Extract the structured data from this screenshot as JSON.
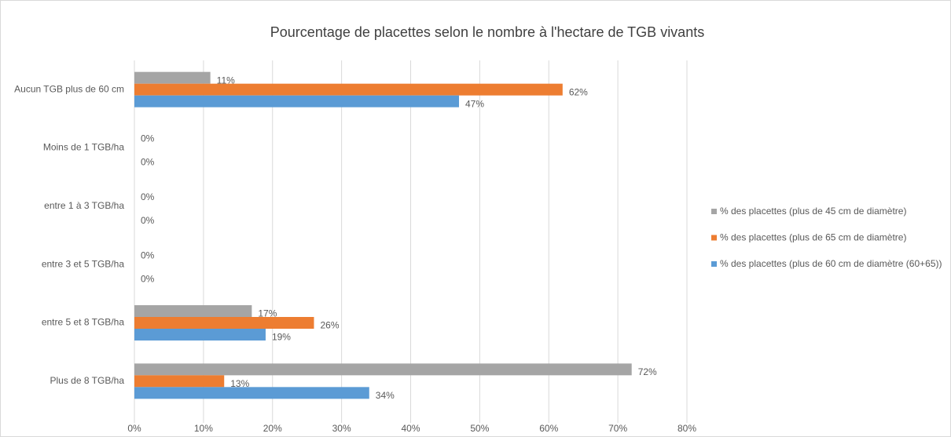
{
  "chart_data": {
    "type": "bar",
    "orientation": "horizontal",
    "title": "Pourcentage de placettes selon le nombre à l'hectare de TGB vivants",
    "categories": [
      "Aucun TGB plus de 60 cm",
      "Moins de 1 TGB/ha",
      "entre 1 à 3 TGB/ha",
      "entre 3 et 5 TGB/ha",
      "entre 5 et 8 TGB/ha",
      "Plus de 8 TGB/ha"
    ],
    "series": [
      {
        "name": "% des placettes (plus de 45 cm de diamètre)",
        "color": "#a5a5a5",
        "values": [
          11,
          0,
          0,
          0,
          17,
          72
        ],
        "value_labels": [
          "11%",
          "0%",
          "0%",
          "0%",
          "17%",
          "72%"
        ]
      },
      {
        "name": "% des placettes (plus de 65 cm de diamètre)",
        "color": "#ed7d31",
        "values": [
          62,
          null,
          null,
          null,
          26,
          13
        ],
        "value_labels": [
          "62%",
          null,
          null,
          null,
          "26%",
          "13%"
        ]
      },
      {
        "name": "% des placettes (plus de 60 cm de diamètre (60+65))",
        "color": "#5b9bd5",
        "values": [
          47,
          0,
          0,
          0,
          19,
          34
        ],
        "value_labels": [
          "47%",
          "0%",
          "0%",
          "0%",
          "19%",
          "34%"
        ]
      }
    ],
    "xlim": [
      0,
      80
    ],
    "xticks": [
      {
        "value": 0,
        "label": "0%"
      },
      {
        "value": 10,
        "label": "10%"
      },
      {
        "value": 20,
        "label": "20%"
      },
      {
        "value": 30,
        "label": "30%"
      },
      {
        "value": 40,
        "label": "40%"
      },
      {
        "value": 50,
        "label": "50%"
      },
      {
        "value": 60,
        "label": "60%"
      },
      {
        "value": 70,
        "label": "70%"
      },
      {
        "value": 80,
        "label": "80%"
      }
    ],
    "grid": true,
    "legend": "right"
  }
}
